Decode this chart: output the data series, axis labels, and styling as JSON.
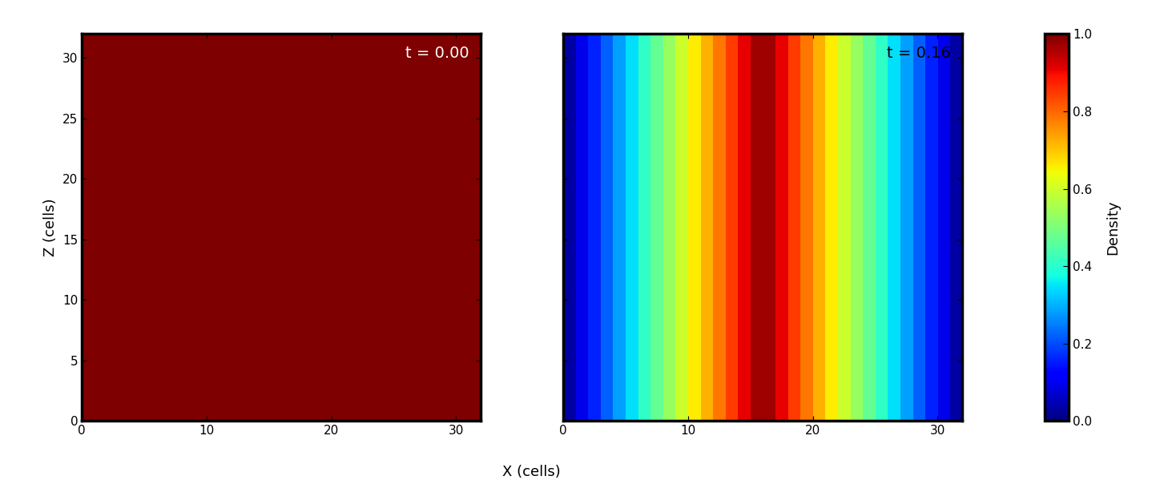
{
  "nx": 32,
  "nz": 32,
  "xticks": [
    0,
    10,
    20,
    30
  ],
  "zticks": [
    0,
    5,
    10,
    15,
    20,
    25,
    30
  ],
  "xlabel": "X (cells)",
  "ylabel": "Z (cells)",
  "title_left": "t = 0.00",
  "title_right": "t = 0.16",
  "colorbar_label": "Density",
  "vmin": 0.0,
  "vmax": 1.0,
  "cmap": "jet",
  "title_left_color": "white",
  "title_right_color": "black",
  "figsize": [
    14.58,
    6.04
  ],
  "dpi": 100
}
